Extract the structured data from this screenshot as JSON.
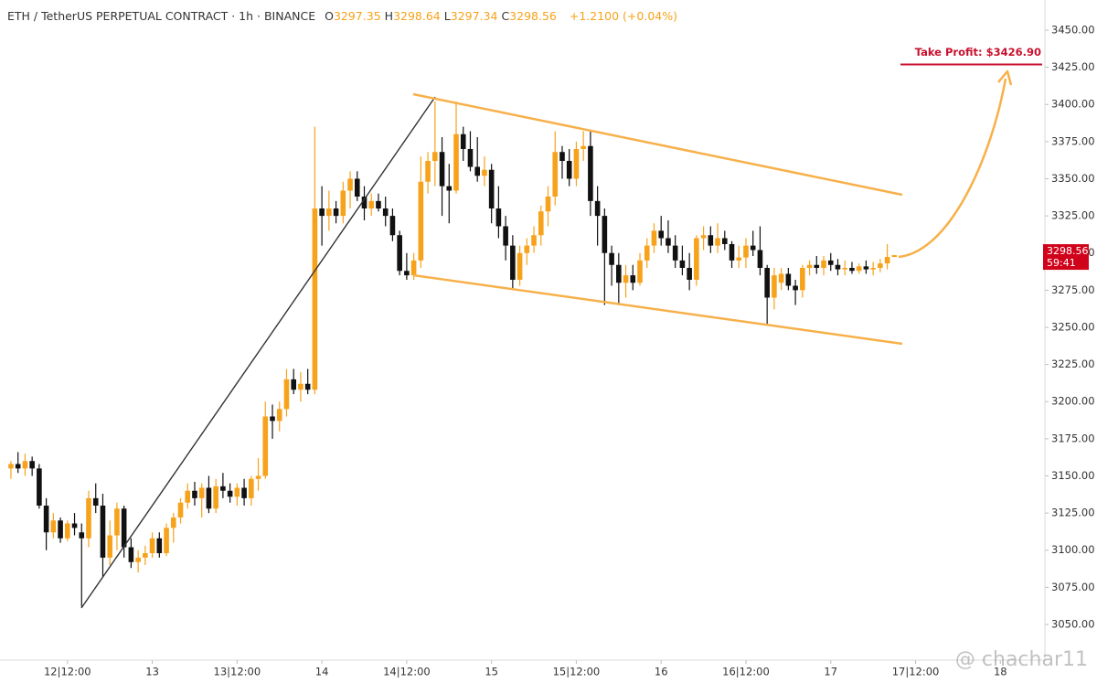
{
  "chart_data": {
    "type": "candlestick",
    "header": {
      "symbol": "ETH / TetherUS PERPETUAL CONTRACT · 1h · BINANCE",
      "ohlc": [
        {
          "key": "O",
          "value": "3297.35"
        },
        {
          "key": "H",
          "value": "3298.64"
        },
        {
          "key": "L",
          "value": "3297.34"
        },
        {
          "key": "C",
          "value": "3298.56"
        }
      ],
      "change": "+1.2100 (+0.04%)"
    },
    "up_color": "#f7a21b",
    "down_color": "#111111",
    "x": [
      4,
      5,
      6,
      7,
      8,
      9,
      10,
      11,
      12,
      13,
      14,
      15,
      16,
      17,
      18,
      19,
      20,
      21,
      22,
      23,
      24,
      25,
      26,
      27,
      28,
      29,
      30,
      31,
      32,
      33,
      34,
      35,
      36,
      37,
      38,
      39,
      40,
      41,
      42,
      43,
      44,
      45,
      46,
      47,
      48,
      49,
      50,
      51,
      52,
      53,
      54,
      55,
      56,
      57,
      58,
      59,
      60,
      61,
      62,
      63,
      64,
      65,
      66,
      67,
      68,
      69,
      70,
      71,
      72,
      73,
      74,
      75,
      76,
      77,
      78,
      79,
      80,
      81,
      82,
      83,
      84,
      85,
      86,
      87,
      88,
      89,
      90,
      91,
      92,
      93,
      94,
      95,
      96,
      97,
      98,
      99,
      100,
      101,
      102,
      103,
      104,
      105,
      106,
      107,
      108,
      109,
      110,
      111,
      112,
      113,
      114,
      115,
      116,
      117,
      118,
      119,
      120,
      121,
      122,
      123,
      124,
      125,
      126,
      127,
      128,
      129
    ],
    "open": [
      3155,
      3158,
      3155,
      3160,
      3155,
      3130,
      3112,
      3120,
      3108,
      3118,
      3112,
      3108,
      3135,
      3130,
      3095,
      3110,
      3128,
      3102,
      3092,
      3095,
      3098,
      3108,
      3098,
      3115,
      3122,
      3132,
      3140,
      3135,
      3142,
      3128,
      3143,
      3140,
      3136,
      3142,
      3135,
      3148,
      3150,
      3190,
      3187,
      3195,
      3215,
      3208,
      3212,
      3208,
      3330,
      3325,
      3330,
      3325,
      3342,
      3350,
      3338,
      3330,
      3335,
      3330,
      3325,
      3312,
      3288,
      3285,
      3295,
      3348,
      3362,
      3368,
      3345,
      3342,
      3380,
      3370,
      3358,
      3352,
      3356,
      3330,
      3318,
      3305,
      3282,
      3300,
      3305,
      3312,
      3328,
      3338,
      3368,
      3362,
      3350,
      3370,
      3372,
      3335,
      3325,
      3300,
      3292,
      3280,
      3285,
      3280,
      3295,
      3305,
      3315,
      3310,
      3305,
      3295,
      3290,
      3282,
      3310,
      3312,
      3305,
      3310,
      3306,
      3295,
      3297,
      3305,
      3302,
      3290,
      3270,
      3280,
      3286,
      3278,
      3275,
      3290,
      3292,
      3290,
      3295,
      3292,
      3289,
      3290,
      3288,
      3291,
      3289,
      3290,
      3293,
      3297.35
    ],
    "high": [
      3160,
      3166,
      3165,
      3163,
      3158,
      3135,
      3125,
      3122,
      3120,
      3125,
      3118,
      3140,
      3145,
      3138,
      3120,
      3132,
      3130,
      3108,
      3100,
      3103,
      3112,
      3112,
      3118,
      3125,
      3135,
      3145,
      3146,
      3145,
      3150,
      3148,
      3152,
      3145,
      3145,
      3148,
      3150,
      3162,
      3200,
      3198,
      3200,
      3222,
      3222,
      3220,
      3222,
      3385,
      3345,
      3342,
      3335,
      3348,
      3355,
      3355,
      3345,
      3340,
      3340,
      3338,
      3330,
      3315,
      3300,
      3300,
      3365,
      3368,
      3402,
      3378,
      3360,
      3402,
      3385,
      3382,
      3378,
      3365,
      3360,
      3345,
      3325,
      3312,
      3305,
      3310,
      3318,
      3332,
      3345,
      3382,
      3372,
      3370,
      3375,
      3382,
      3382,
      3345,
      3330,
      3305,
      3300,
      3292,
      3292,
      3300,
      3310,
      3320,
      3325,
      3322,
      3312,
      3305,
      3300,
      3312,
      3318,
      3318,
      3320,
      3315,
      3308,
      3305,
      3310,
      3315,
      3318,
      3292,
      3290,
      3290,
      3290,
      3282,
      3292,
      3295,
      3298,
      3298,
      3300,
      3296,
      3295,
      3294,
      3293,
      3295,
      3294,
      3296,
      3306,
      3298.64
    ],
    "low": [
      3148,
      3152,
      3150,
      3150,
      3128,
      3100,
      3108,
      3105,
      3106,
      3110,
      3062,
      3102,
      3125,
      3082,
      3090,
      3100,
      3095,
      3088,
      3085,
      3090,
      3095,
      3095,
      3096,
      3105,
      3118,
      3128,
      3130,
      3122,
      3125,
      3125,
      3135,
      3132,
      3130,
      3130,
      3130,
      3140,
      3148,
      3175,
      3180,
      3190,
      3205,
      3200,
      3205,
      3205,
      3305,
      3315,
      3320,
      3320,
      3330,
      3335,
      3322,
      3325,
      3328,
      3318,
      3308,
      3285,
      3282,
      3282,
      3290,
      3340,
      3345,
      3325,
      3320,
      3340,
      3362,
      3355,
      3348,
      3345,
      3320,
      3310,
      3295,
      3275,
      3278,
      3292,
      3300,
      3305,
      3318,
      3332,
      3350,
      3345,
      3345,
      3362,
      3325,
      3305,
      3265,
      3278,
      3265,
      3270,
      3275,
      3278,
      3290,
      3300,
      3305,
      3300,
      3290,
      3285,
      3275,
      3278,
      3302,
      3300,
      3300,
      3302,
      3290,
      3290,
      3290,
      3298,
      3285,
      3252,
      3262,
      3275,
      3275,
      3265,
      3270,
      3285,
      3286,
      3285,
      3288,
      3285,
      3285,
      3286,
      3286,
      3286,
      3285,
      3287,
      3289,
      3297.34
    ],
    "close": [
      3158,
      3155,
      3160,
      3155,
      3130,
      3112,
      3120,
      3108,
      3118,
      3115,
      3108,
      3135,
      3130,
      3095,
      3110,
      3128,
      3102,
      3092,
      3095,
      3098,
      3108,
      3098,
      3115,
      3122,
      3132,
      3140,
      3135,
      3142,
      3128,
      3143,
      3140,
      3136,
      3142,
      3135,
      3148,
      3150,
      3190,
      3187,
      3195,
      3215,
      3208,
      3212,
      3208,
      3330,
      3325,
      3330,
      3325,
      3342,
      3350,
      3338,
      3330,
      3335,
      3330,
      3325,
      3312,
      3288,
      3285,
      3295,
      3348,
      3362,
      3368,
      3345,
      3342,
      3380,
      3370,
      3358,
      3352,
      3356,
      3330,
      3318,
      3305,
      3282,
      3300,
      3305,
      3312,
      3328,
      3338,
      3368,
      3362,
      3350,
      3370,
      3372,
      3335,
      3325,
      3300,
      3292,
      3280,
      3285,
      3280,
      3295,
      3305,
      3315,
      3310,
      3305,
      3295,
      3290,
      3282,
      3310,
      3312,
      3305,
      3310,
      3306,
      3295,
      3297,
      3305,
      3302,
      3290,
      3270,
      3285,
      3286,
      3278,
      3275,
      3290,
      3292,
      3290,
      3295,
      3292,
      3289,
      3290,
      3288,
      3291,
      3289,
      3290,
      3293,
      3297.35,
      3298.56
    ],
    "xlim": [
      3.1,
      150.3
    ],
    "xticks": [
      {
        "value": 12,
        "label": "12|12:00"
      },
      24,
      {
        "value": 36,
        "label": "13|12:00"
      },
      48,
      {
        "value": 60,
        "label": "14|12:00"
      },
      72,
      {
        "value": 84,
        "label": "15|12:00"
      },
      96,
      {
        "value": 108,
        "label": "16|12:00"
      },
      120,
      {
        "value": 132,
        "label": "17|12:00"
      },
      144
    ],
    "xtick_labels_text": [
      "12|12:00",
      "13",
      "13|12:00",
      "14",
      "14|12:00",
      "15",
      "15|12:00",
      "16",
      "16|12:00",
      "17",
      "17|12:00",
      "18"
    ],
    "ylim": [
      3026,
      3470.3
    ],
    "yticks": [
      {
        "value": 3050,
        "label": "3050.00"
      },
      {
        "value": 3075,
        "label": "3075.00"
      },
      {
        "value": 3100,
        "label": "3100.00"
      },
      {
        "value": 3125,
        "label": "3125.00"
      },
      {
        "value": 3150,
        "label": "3150.00"
      },
      {
        "value": 3175,
        "label": "3175.00"
      },
      {
        "value": 3200,
        "label": "3200.00"
      },
      {
        "value": 3225,
        "label": "3225.00"
      },
      {
        "value": 3250,
        "label": "3250.00"
      },
      {
        "value": 3275,
        "label": "3275.00"
      },
      {
        "value": 3300,
        "label": "3300.00"
      },
      {
        "value": 3325,
        "label": "3325.00"
      },
      {
        "value": 3350,
        "label": "3350.00"
      },
      {
        "value": 3375,
        "label": "3375.00"
      },
      {
        "value": 3400,
        "label": "3400.00"
      },
      {
        "value": 3425,
        "label": "3425.00"
      },
      {
        "value": 3450,
        "label": "3450.00"
      }
    ],
    "take_profit": {
      "value": 3426.9,
      "label": "Take Profit: $3426.90",
      "color": "#c8102e"
    },
    "price_tag": {
      "value": 3298.56,
      "label": "3298.56",
      "countdown": "59:41",
      "color": "#d0021b"
    },
    "watermark": "@ chachar11"
  }
}
